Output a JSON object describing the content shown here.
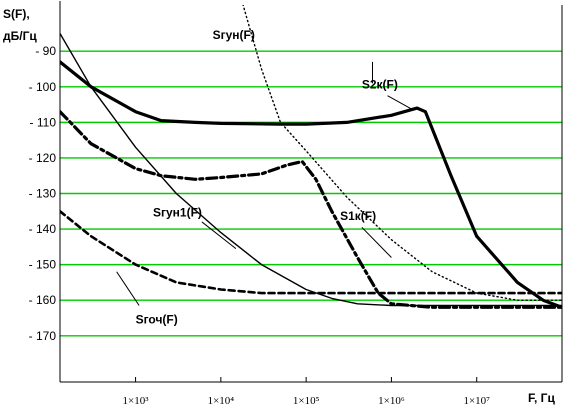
{
  "chart_data": {
    "type": "line",
    "ylabel_line1": "S(F),",
    "ylabel_line2": "дБ/Гц",
    "xlabel": "F, Гц",
    "x_scale": "log",
    "xlim": [
      130,
      100000000
    ],
    "ylim": [
      -183,
      -77
    ],
    "grid": true,
    "grid_color": "#00cc00",
    "y_ticks": [
      -90,
      -100,
      -110,
      -120,
      -130,
      -140,
      -150,
      -160,
      -170
    ],
    "y_tick_labels": [
      "- 90",
      "- 100",
      "- 110",
      "- 120",
      "- 130",
      "- 140",
      "- 150",
      "- 160",
      "- 170"
    ],
    "x_ticks": [
      1000,
      10000,
      100000,
      1000000,
      10000000
    ],
    "x_tick_labels": [
      "1×10³",
      "1×10⁴",
      "1×10⁵",
      "1×10⁶",
      "1×10⁷"
    ],
    "series": [
      {
        "name": "S2к(F)",
        "style": "thick-solid",
        "x": [
          130,
          300,
          1000,
          2000,
          5000,
          10000,
          50000,
          100000,
          300000,
          1000000,
          2000000,
          2500000,
          5000000,
          10000000,
          30000000,
          60000000,
          100000000
        ],
        "y": [
          -93,
          -100,
          -107,
          -109.5,
          -110,
          -110.3,
          -110.5,
          -110.5,
          -110,
          -108,
          -106,
          -107,
          -125,
          -142,
          -155,
          -160,
          -162
        ]
      },
      {
        "name": "S1к(F)",
        "style": "thick-dashdot",
        "x": [
          130,
          300,
          1000,
          2000,
          5000,
          10000,
          30000,
          60000,
          90000,
          130000,
          200000,
          400000,
          700000,
          1000000,
          3000000,
          10000000,
          100000000
        ],
        "y": [
          -107,
          -116,
          -123,
          -125,
          -126,
          -125.5,
          -124.5,
          -122,
          -121,
          -126,
          -135,
          -148,
          -158,
          -161,
          -162,
          -162,
          -162
        ]
      },
      {
        "name": "Sгун1(F)",
        "style": "thin-solid",
        "x": [
          130,
          300,
          1000,
          3000,
          10000,
          30000,
          100000,
          200000,
          400000,
          1000000,
          10000000,
          100000000
        ],
        "y": [
          -85,
          -100,
          -117,
          -130,
          -141,
          -150,
          -157,
          -159.5,
          -161,
          -161.5,
          -161.5,
          -161.5
        ]
      },
      {
        "name": "Sгоч(F)",
        "style": "thick-dashed",
        "x": [
          130,
          300,
          1000,
          3000,
          10000,
          30000,
          100000,
          300000,
          1000000,
          10000000,
          100000000
        ],
        "y": [
          -135,
          -142,
          -150,
          -155,
          -157,
          -158,
          -158,
          -158,
          -158,
          -158,
          -158
        ]
      },
      {
        "name": "Sгун(F)",
        "style": "dotted",
        "x": [
          50000,
          100000,
          300000,
          1000000,
          3000000,
          10000000,
          30000000,
          100000000
        ],
        "y": [
          -110,
          -118,
          -131,
          -143,
          -152,
          -158,
          -160,
          -160
        ]
      }
    ],
    "annotations": [
      {
        "label": "Sгун(F)",
        "series": "Sгун(F)"
      },
      {
        "label": "S2к(F)",
        "series": "S2к(F)"
      },
      {
        "label": "Sгун1(F)",
        "series": "Sгун1(F)"
      },
      {
        "label": "S1к(F)",
        "series": "S1к(F)"
      },
      {
        "label": "Sгоч(F)",
        "series": "Sгоч(F)"
      }
    ],
    "top_curve": {
      "series": "Sгун(F)",
      "x": [
        15000,
        30000,
        50000
      ],
      "y": [
        -70,
        -95,
        -110
      ]
    }
  }
}
